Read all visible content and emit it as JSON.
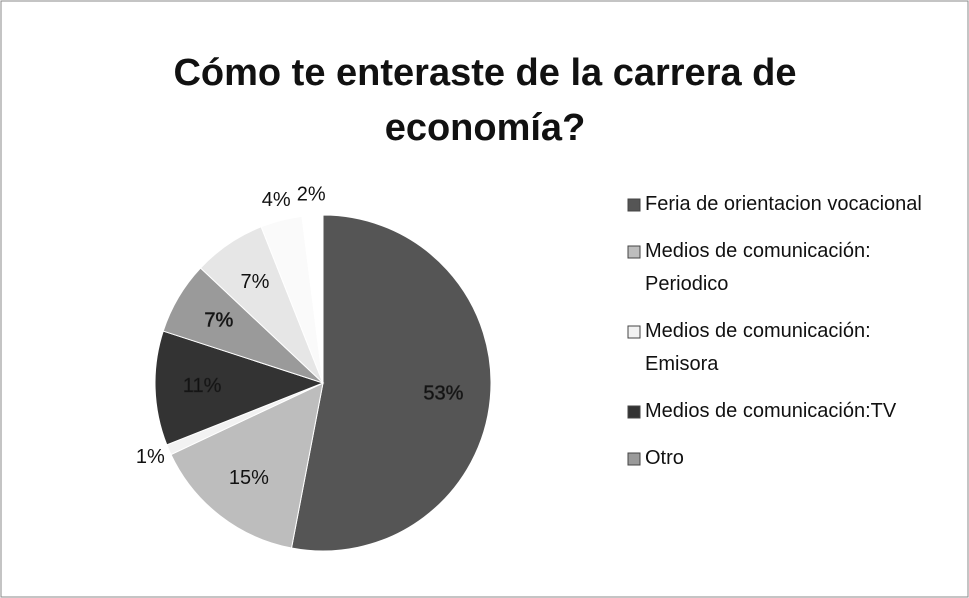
{
  "chart_data": {
    "type": "pie",
    "title": "Cómo te enteraste de la carrera de economía?",
    "categories": [
      "Feria de orientacion vocacional",
      "Medios de comunicación: Periodico",
      "Medios de comunicación: Emisora",
      "Medios de comunicación:TV",
      "Otro",
      null,
      null,
      null
    ],
    "values": [
      53,
      15,
      1,
      11,
      7,
      7,
      4,
      2
    ],
    "value_labels": [
      "53%",
      "15%",
      "1%",
      "11%",
      "7%",
      "7%",
      "4%",
      "2%"
    ],
    "colors": [
      "#555555",
      "#bdbdbd",
      "#f2f2f2",
      "#333333",
      "#9a9a9a",
      "#e6e6e6",
      "#fafafa",
      "#ffffff"
    ],
    "legend": "right"
  }
}
